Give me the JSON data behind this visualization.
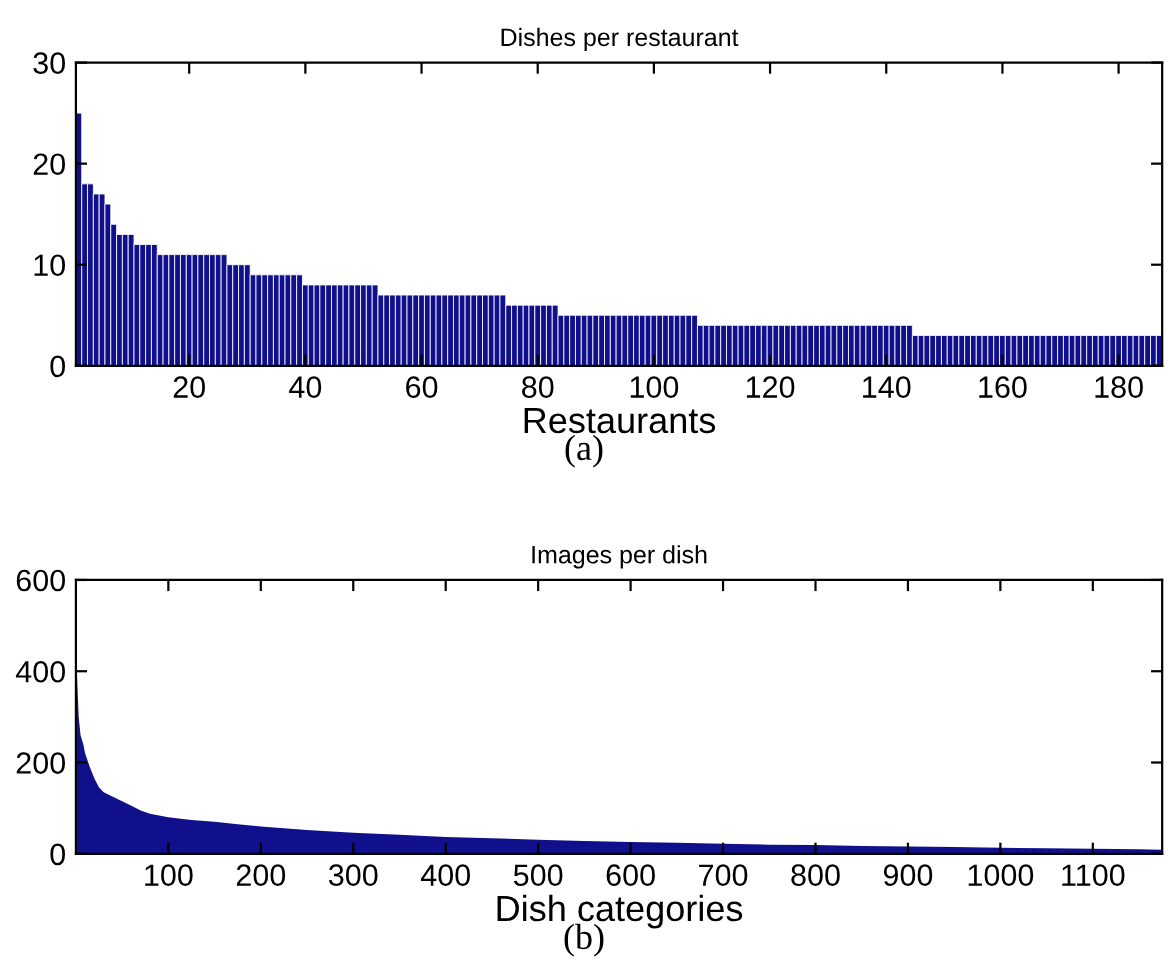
{
  "chart_data": [
    {
      "type": "bar",
      "title": "Dishes per restaurant",
      "xlabel": "Restaurants",
      "annotations": [
        "(a)"
      ],
      "color": "#10108c",
      "x": [
        1,
        2,
        3,
        4,
        5,
        6,
        7,
        8,
        9,
        10,
        11,
        12,
        13,
        14,
        15,
        16,
        17,
        18,
        19,
        20,
        21,
        22,
        23,
        24,
        25,
        26,
        27,
        28,
        29,
        30,
        31,
        32,
        33,
        34,
        35,
        36,
        37,
        38,
        39,
        40,
        41,
        42,
        43,
        44,
        45,
        46,
        47,
        48,
        49,
        50,
        51,
        52,
        53,
        54,
        55,
        56,
        57,
        58,
        59,
        60,
        61,
        62,
        63,
        64,
        65,
        66,
        67,
        68,
        69,
        70,
        71,
        72,
        73,
        74,
        75,
        76,
        77,
        78,
        79,
        80,
        81,
        82,
        83,
        84,
        85,
        86,
        87,
        88,
        89,
        90,
        91,
        92,
        93,
        94,
        95,
        96,
        97,
        98,
        99,
        100,
        101,
        102,
        103,
        104,
        105,
        106,
        107,
        108,
        109,
        110,
        111,
        112,
        113,
        114,
        115,
        116,
        117,
        118,
        119,
        120,
        121,
        122,
        123,
        124,
        125,
        126,
        127,
        128,
        129,
        130,
        131,
        132,
        133,
        134,
        135,
        136,
        137,
        138,
        139,
        140,
        141,
        142,
        143,
        144,
        145,
        146,
        147,
        148,
        149,
        150,
        151,
        152,
        153,
        154,
        155,
        156,
        157,
        158,
        159,
        160,
        161,
        162,
        163,
        164,
        165,
        166,
        167,
        168,
        169,
        170,
        171,
        172,
        173,
        174,
        175,
        176,
        177,
        178,
        179,
        180,
        181,
        182,
        183,
        184,
        185,
        186,
        187
      ],
      "values": [
        25,
        18,
        18,
        17,
        17,
        16,
        14,
        13,
        13,
        13,
        12,
        12,
        12,
        12,
        11,
        11,
        11,
        11,
        11,
        11,
        11,
        11,
        11,
        11,
        11,
        11,
        10,
        10,
        10,
        10,
        9,
        9,
        9,
        9,
        9,
        9,
        9,
        9,
        9,
        8,
        8,
        8,
        8,
        8,
        8,
        8,
        8,
        8,
        8,
        8,
        8,
        8,
        7,
        7,
        7,
        7,
        7,
        7,
        7,
        7,
        7,
        7,
        7,
        7,
        7,
        7,
        7,
        7,
        7,
        7,
        7,
        7,
        7,
        7,
        6,
        6,
        6,
        6,
        6,
        6,
        6,
        6,
        6,
        5,
        5,
        5,
        5,
        5,
        5,
        5,
        5,
        5,
        5,
        5,
        5,
        5,
        5,
        5,
        5,
        5,
        5,
        5,
        5,
        5,
        5,
        5,
        5,
        4,
        4,
        4,
        4,
        4,
        4,
        4,
        4,
        4,
        4,
        4,
        4,
        4,
        4,
        4,
        4,
        4,
        4,
        4,
        4,
        4,
        4,
        4,
        4,
        4,
        4,
        4,
        4,
        4,
        4,
        4,
        4,
        4,
        4,
        4,
        4,
        4,
        3,
        3,
        3,
        3,
        3,
        3,
        3,
        3,
        3,
        3,
        3,
        3,
        3,
        3,
        3,
        3,
        3,
        3,
        3,
        3,
        3,
        3,
        3,
        3,
        3,
        3,
        3,
        3,
        3,
        3,
        3,
        3,
        3,
        3,
        3,
        3,
        3,
        3,
        3,
        3,
        3,
        3,
        3
      ],
      "xlim": [
        0.5,
        187.5
      ],
      "ylim": [
        0,
        30
      ],
      "xticks": [
        20,
        40,
        60,
        80,
        100,
        120,
        140,
        160,
        180
      ],
      "yticks": [
        0,
        10,
        20,
        30
      ]
    },
    {
      "type": "area",
      "title": "Images per dish",
      "xlabel": "Dish categories",
      "annotations": [
        "(b)"
      ],
      "color": "#10108c",
      "x": [
        1,
        2,
        3,
        5,
        8,
        10,
        15,
        20,
        25,
        30,
        40,
        50,
        60,
        70,
        80,
        100,
        125,
        150,
        175,
        200,
        250,
        300,
        350,
        400,
        450,
        500,
        550,
        600,
        650,
        700,
        750,
        800,
        850,
        900,
        950,
        1000,
        1050,
        1100,
        1150,
        1174
      ],
      "values": [
        400,
        350,
        300,
        260,
        240,
        220,
        190,
        165,
        145,
        135,
        125,
        115,
        105,
        95,
        88,
        80,
        74,
        70,
        65,
        60,
        52,
        46,
        42,
        37,
        34,
        31,
        28,
        26,
        24,
        22,
        20,
        19,
        17,
        16,
        15,
        13,
        12,
        11,
        10,
        9
      ],
      "xlim": [
        0,
        1175
      ],
      "ylim": [
        0,
        600
      ],
      "xticks": [
        100,
        200,
        300,
        400,
        500,
        600,
        700,
        800,
        900,
        1000,
        1100
      ],
      "yticks": [
        0,
        200,
        400,
        600
      ]
    }
  ]
}
